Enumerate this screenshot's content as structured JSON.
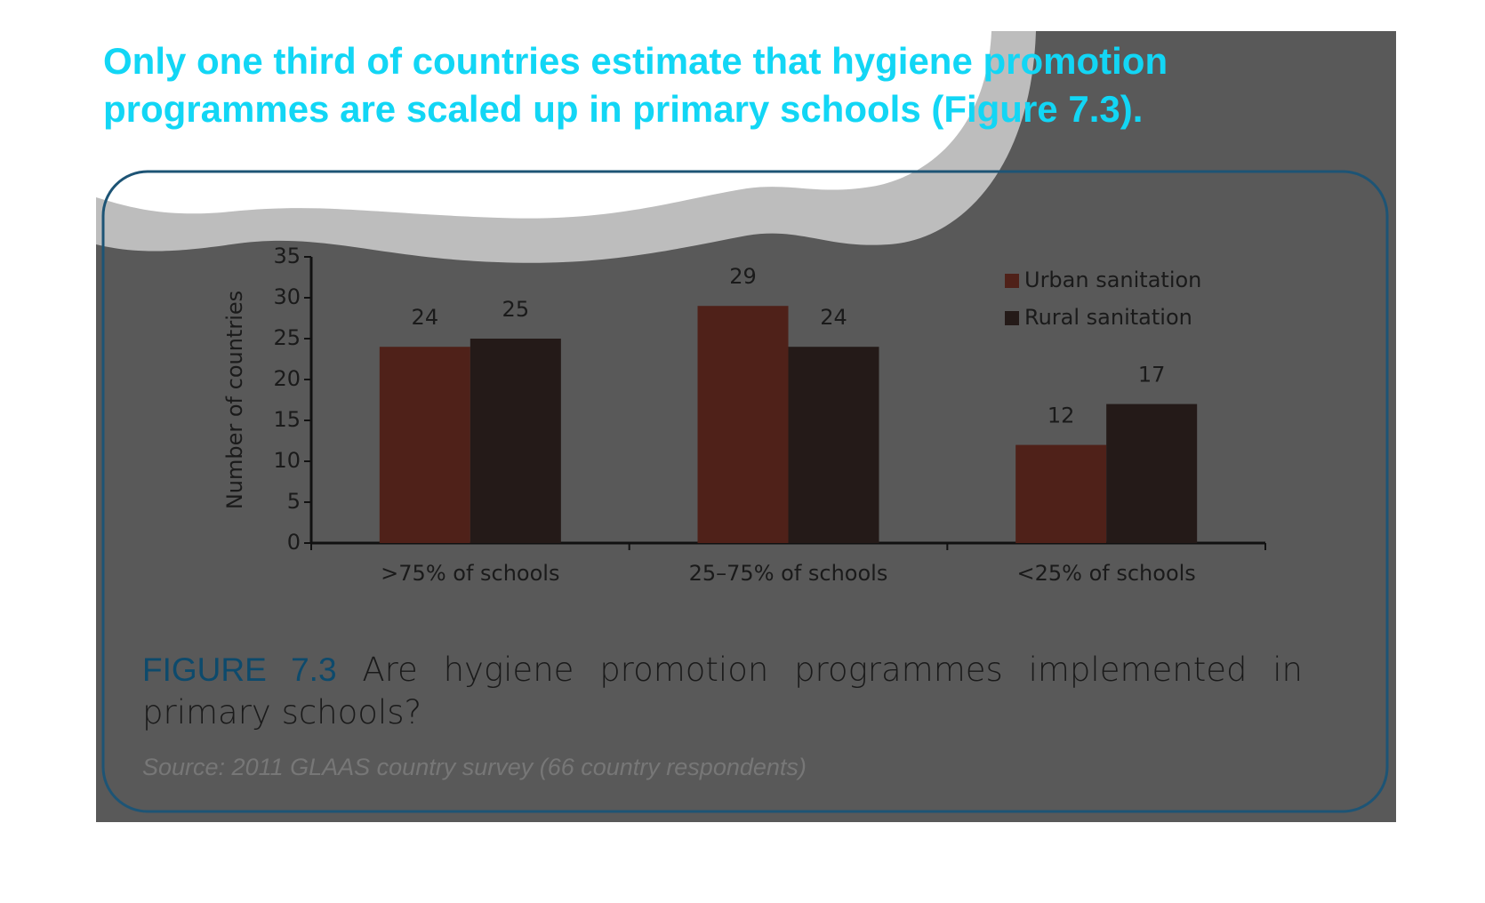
{
  "heading": "Only one third of countries estimate that hygiene promotion programmes are scaled up in primary schools (Figure 7.3).",
  "chart_data": {
    "type": "bar",
    "ylabel": "Number of countries",
    "categories": [
      ">75% of schools",
      "25–75% of schools",
      "<25% of schools"
    ],
    "series": [
      {
        "name": "Urban sanitation",
        "color": "#4f2119",
        "values": [
          24,
          29,
          12
        ]
      },
      {
        "name": "Rural sanitation",
        "color": "#241a18",
        "values": [
          25,
          24,
          17
        ]
      }
    ],
    "ylim": [
      0,
      35
    ],
    "yticks": [
      0,
      5,
      10,
      15,
      20,
      25,
      30,
      35
    ],
    "legend": "upper right"
  },
  "caption": {
    "label": "FIGURE 7.3",
    "text": "Are hygiene promotion programmes implemented in primary schools?"
  },
  "source": "Source: 2011 GLAAS country survey (66 country respondents)"
}
